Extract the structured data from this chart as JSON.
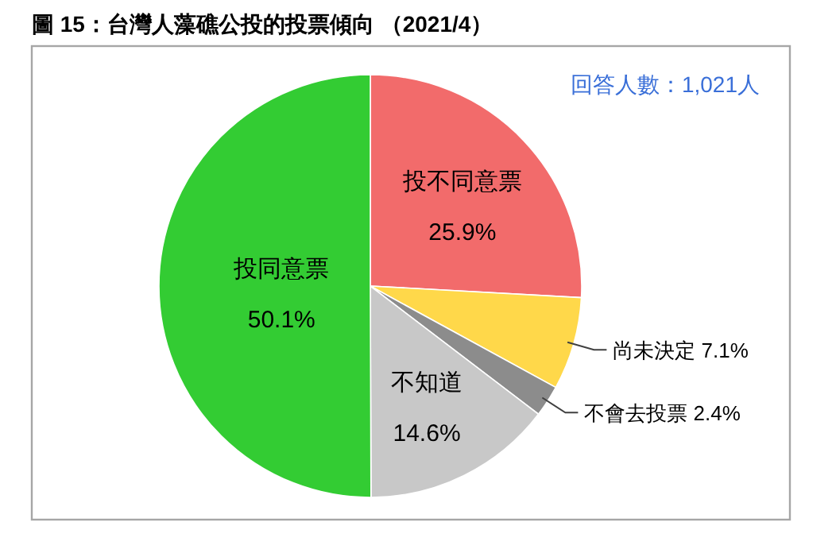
{
  "chart_data": {
    "type": "pie",
    "title": "圖 15：台灣人藻礁公投的投票傾向 （2021/4）",
    "categories": [
      "投不同意票",
      "尚未決定",
      "不會去投票",
      "不知道",
      "投同意票"
    ],
    "values": [
      25.9,
      7.1,
      2.4,
      14.6,
      50.1
    ],
    "value_labels": [
      "25.9%",
      "7.1%",
      "2.4%",
      "14.6%",
      "50.1%"
    ],
    "colors": [
      "#f26b6b",
      "#ffd84a",
      "#8c8c8c",
      "#c8c8c8",
      "#33cc33"
    ],
    "annotations": [
      "回答人數：1,021人"
    ]
  }
}
